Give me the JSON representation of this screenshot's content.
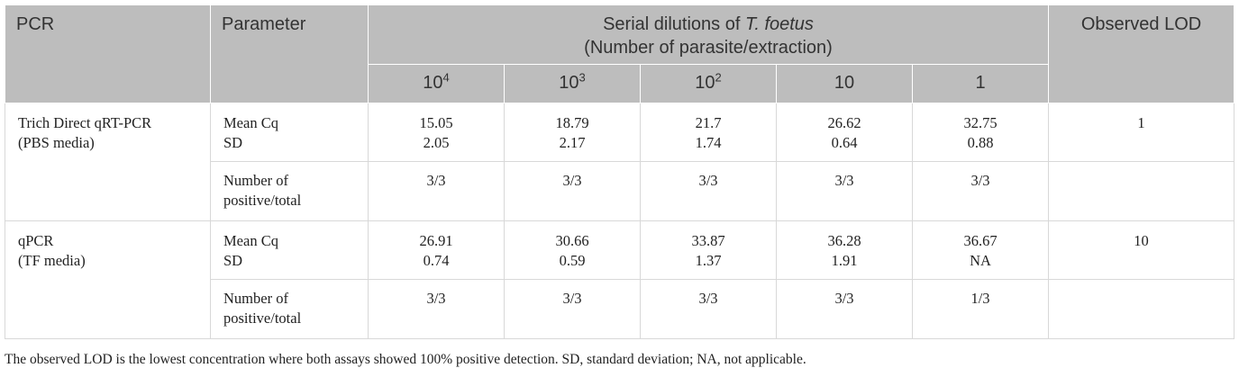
{
  "header": {
    "pcr": "PCR",
    "parameter": "Parameter",
    "serial_line1_prefix": "Serial dilutions of ",
    "serial_line1_italic": "T. foetus",
    "serial_line2": "(Number of parasite/extraction)",
    "observed_lod": "Observed LOD",
    "dilutions": [
      {
        "base": "10",
        "exp": "4"
      },
      {
        "base": "10",
        "exp": "3"
      },
      {
        "base": "10",
        "exp": "2"
      },
      {
        "base": "10",
        "exp": ""
      },
      {
        "base": "1",
        "exp": ""
      }
    ]
  },
  "rows": [
    {
      "pcr_line1": "Trich Direct qRT-PCR",
      "pcr_line2": "(PBS media)",
      "param_a_line1": "Mean Cq",
      "param_a_line2": "SD",
      "mean": [
        "15.05",
        "18.79",
        "21.7",
        "26.62",
        "32.75"
      ],
      "sd": [
        "2.05",
        "2.17",
        "1.74",
        "0.64",
        "0.88"
      ],
      "param_b_line1": "Number of",
      "param_b_line2": "positive/total",
      "positive": [
        "3/3",
        "3/3",
        "3/3",
        "3/3",
        "3/3"
      ],
      "lod": "1"
    },
    {
      "pcr_line1": "qPCR",
      "pcr_line2": "(TF media)",
      "param_a_line1": "Mean Cq",
      "param_a_line2": "SD",
      "mean": [
        "26.91",
        "30.66",
        "33.87",
        "36.28",
        "36.67"
      ],
      "sd": [
        "0.74",
        "0.59",
        "1.37",
        "1.91",
        "NA"
      ],
      "param_b_line1": "Number of",
      "param_b_line2": "positive/total",
      "positive": [
        "3/3",
        "3/3",
        "3/3",
        "3/3",
        "1/3"
      ],
      "lod": "10"
    }
  ],
  "footnote": "The observed LOD is the lowest concentration where both assays showed 100% positive detection. SD, standard deviation; NA, not applicable."
}
